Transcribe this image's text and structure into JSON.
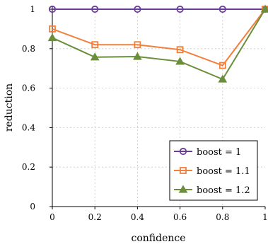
{
  "chart_data": {
    "type": "line",
    "xlabel": "confidence",
    "ylabel": "reduction",
    "xlim": [
      0,
      1
    ],
    "ylim": [
      0,
      1
    ],
    "xticks": [
      0,
      0.2,
      0.4,
      0.6,
      0.8,
      1
    ],
    "yticks": [
      0,
      0.2,
      0.4,
      0.6,
      0.8,
      1
    ],
    "xtick_labels": [
      "0",
      "0.2",
      "0.4",
      "0.6",
      "0.8",
      "1"
    ],
    "ytick_labels": [
      "0",
      "0.2",
      "0.4",
      "0.6",
      "0.8",
      "1"
    ],
    "grid": true,
    "legend_position": "bottom-right",
    "x": [
      0,
      0.2,
      0.4,
      0.6,
      0.8,
      1
    ],
    "series": [
      {
        "name": "boost = 1",
        "values": [
          1.0,
          1.0,
          1.0,
          1.0,
          1.0,
          1.0
        ],
        "color": "#6a3d9a",
        "marker": "circle"
      },
      {
        "name": "boost = 1.1",
        "values": [
          0.9,
          0.82,
          0.82,
          0.795,
          0.715,
          1.0
        ],
        "color": "#f0803c",
        "marker": "square"
      },
      {
        "name": "boost = 1.2",
        "values": [
          0.855,
          0.757,
          0.76,
          0.735,
          0.645,
          1.0
        ],
        "color": "#6b8e3a",
        "marker": "triangle"
      }
    ]
  }
}
